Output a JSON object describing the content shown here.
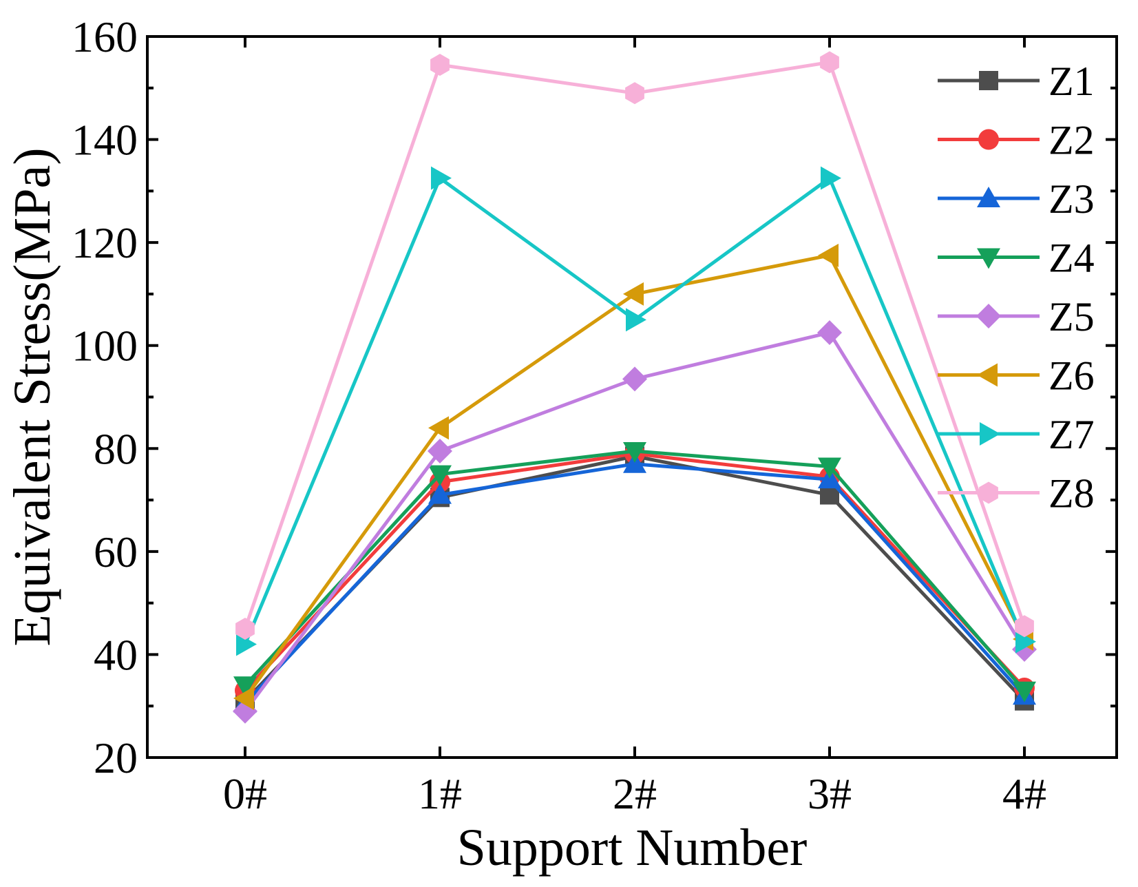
{
  "chart_data": {
    "type": "line",
    "title": "",
    "xlabel": "Support Number",
    "ylabel": "Equivalent Stress(MPa)",
    "categories": [
      "0#",
      "1#",
      "2#",
      "3#",
      "4#"
    ],
    "ylim": [
      20,
      160
    ],
    "yticks": [
      20,
      40,
      60,
      80,
      100,
      120,
      140,
      160
    ],
    "legend_position": "top-right",
    "grid": false,
    "series": [
      {
        "name": "Z1",
        "color": "#4d4d4d",
        "marker": "square",
        "values": [
          31,
          70.5,
          78.5,
          71,
          31
        ]
      },
      {
        "name": "Z2",
        "color": "#f23c3c",
        "marker": "circle",
        "values": [
          33,
          73.5,
          79,
          74.5,
          33.5
        ]
      },
      {
        "name": "Z3",
        "color": "#1565d8",
        "marker": "triangle-up",
        "values": [
          30.5,
          71,
          77,
          74,
          32
        ]
      },
      {
        "name": "Z4",
        "color": "#15a05a",
        "marker": "triangle-down",
        "values": [
          34,
          75,
          79.5,
          76.5,
          33
        ]
      },
      {
        "name": "Z5",
        "color": "#c07ddf",
        "marker": "diamond",
        "values": [
          29,
          79.5,
          93.5,
          102.5,
          41
        ]
      },
      {
        "name": "Z6",
        "color": "#d59a0a",
        "marker": "triangle-left",
        "values": [
          31.5,
          84,
          110,
          117.5,
          43
        ]
      },
      {
        "name": "Z7",
        "color": "#17c6c6",
        "marker": "triangle-right",
        "values": [
          42,
          132.5,
          105,
          132.5,
          42.5
        ]
      },
      {
        "name": "Z8",
        "color": "#f7b0d8",
        "marker": "hexagon",
        "values": [
          45,
          154.5,
          149,
          155,
          45.5
        ]
      }
    ]
  }
}
